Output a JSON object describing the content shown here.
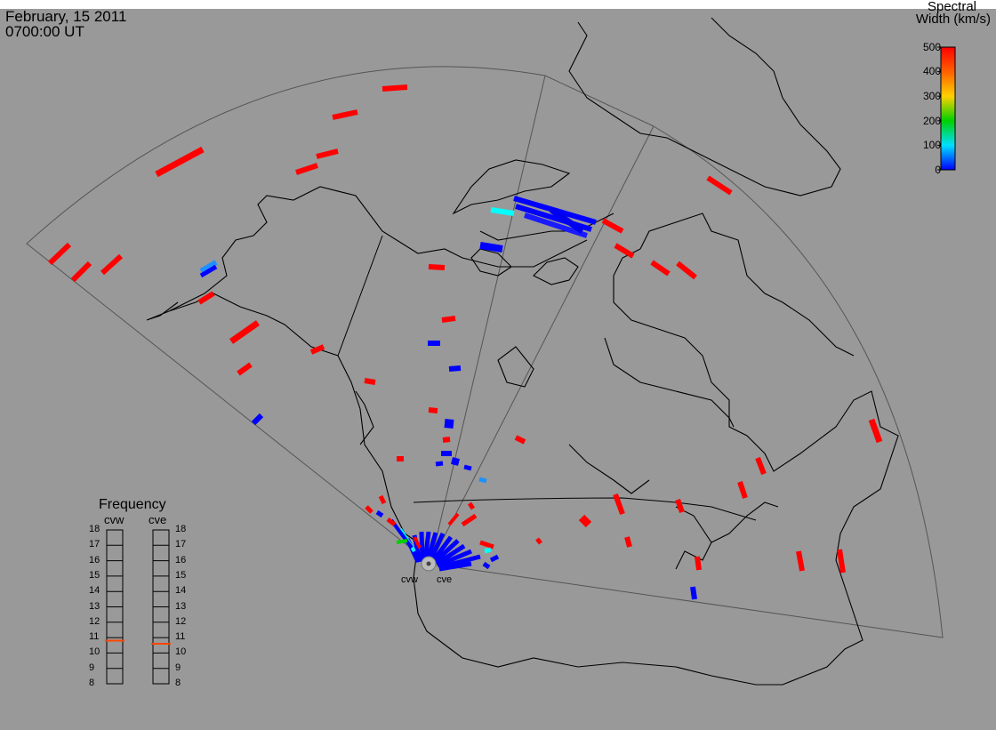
{
  "header": {
    "date": "February, 15 2011",
    "time": "0700:00 UT"
  },
  "colorbar": {
    "title_line1": "Spectral",
    "title_line2": "Width (km/s)",
    "ticks": [
      "500",
      "400",
      "300",
      "200",
      "100",
      "0"
    ],
    "range": [
      0,
      500
    ],
    "colors": [
      "#0000ff",
      "#00e0ff",
      "#00d000",
      "#ffd000",
      "#ff0000"
    ]
  },
  "frequency_panel": {
    "title": "Frequency",
    "radars": [
      {
        "name": "cvw",
        "value_mhz": 10.8,
        "marker_color": "#ff4500"
      },
      {
        "name": "cve",
        "value_mhz": 10.6,
        "marker_color": "#ff4500"
      }
    ],
    "ticks": [
      "18",
      "17",
      "16",
      "15",
      "14",
      "13",
      "12",
      "11",
      "10",
      "9",
      "8"
    ]
  },
  "radar_labels": {
    "west": "cvw",
    "east": "cve"
  },
  "colors": {
    "background": "#999999",
    "coast": "#000000",
    "fov": "#555555"
  }
}
